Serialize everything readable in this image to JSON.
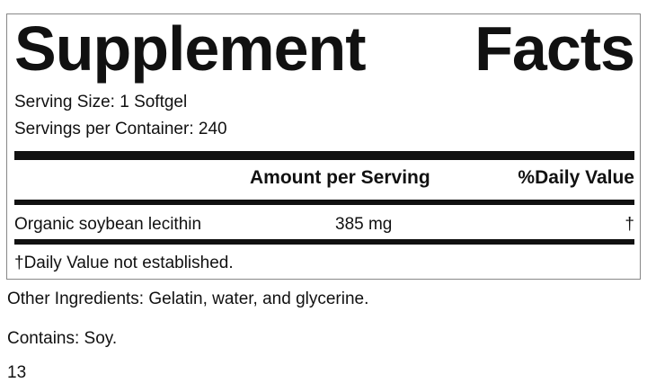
{
  "title": "Supplement Facts",
  "serving_size": "Serving Size: 1 Softgel",
  "servings_per_container": "Servings per Container: 240",
  "table": {
    "columns": [
      "Amount per Serving",
      "%Daily Value"
    ],
    "rows": [
      [
        "Organic soybean lecithin",
        "385 mg",
        "†"
      ]
    ]
  },
  "footnote": "†Daily Value not established.",
  "other_ingredients": "Other Ingredients: Gelatin, water, and glycerine.",
  "contains": "Contains: Soy.",
  "page_number": "13"
}
